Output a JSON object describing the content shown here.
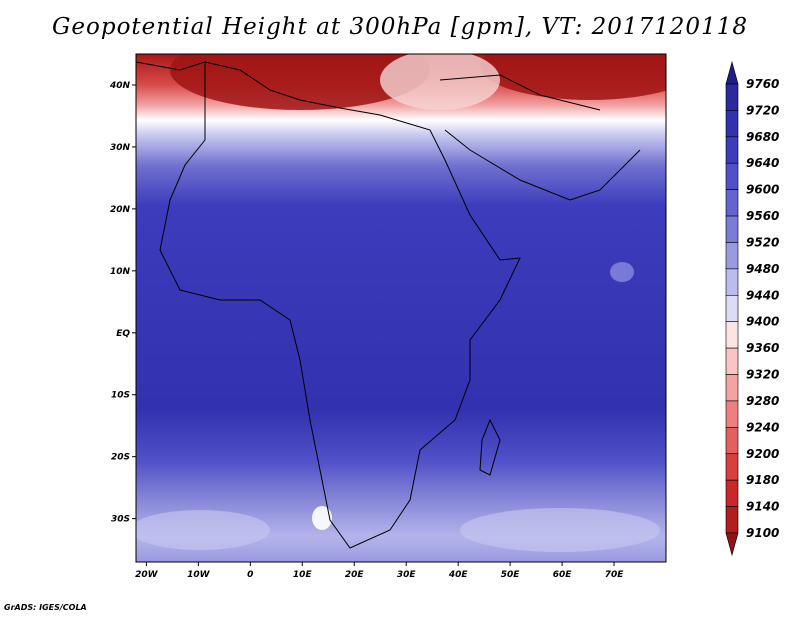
{
  "title": "Geopotential Height at 300hPa [gpm], VT: 2017120118",
  "credit": "GrADS: IGES/COLA",
  "map": {
    "lat_range": [
      -37,
      45
    ],
    "lon_range": [
      -22,
      80
    ],
    "lat_ticks": [
      {
        "value": 40,
        "label": "40N"
      },
      {
        "value": 30,
        "label": "30N"
      },
      {
        "value": 20,
        "label": "20N"
      },
      {
        "value": 10,
        "label": "10N"
      },
      {
        "value": 0,
        "label": "EQ"
      },
      {
        "value": -10,
        "label": "10S"
      },
      {
        "value": -20,
        "label": "20S"
      },
      {
        "value": -30,
        "label": "30S"
      }
    ],
    "lon_ticks": [
      {
        "value": -20,
        "label": "20W"
      },
      {
        "value": -10,
        "label": "10W"
      },
      {
        "value": 0,
        "label": "0"
      },
      {
        "value": 10,
        "label": "10E"
      },
      {
        "value": 20,
        "label": "20E"
      },
      {
        "value": 30,
        "label": "30E"
      },
      {
        "value": 40,
        "label": "40E"
      },
      {
        "value": 50,
        "label": "50E"
      },
      {
        "value": 60,
        "label": "60E"
      },
      {
        "value": 70,
        "label": "70E"
      }
    ]
  },
  "colorbar": {
    "levels": [
      9760,
      9720,
      9680,
      9640,
      9600,
      9560,
      9520,
      9480,
      9440,
      9400,
      9360,
      9320,
      9280,
      9240,
      9200,
      9180,
      9140,
      9100
    ],
    "colors": [
      "#201c8a",
      "#2a2a9e",
      "#3232b0",
      "#3c3cbc",
      "#5050c8",
      "#6464d0",
      "#7c7cd8",
      "#9a9ae0",
      "#bcbcec",
      "#dcdcf6",
      "#fae4e4",
      "#f8c4c4",
      "#f4a2a2",
      "#ec8080",
      "#e46060",
      "#d84040",
      "#c82828",
      "#b01e1e",
      "#901414"
    ]
  }
}
